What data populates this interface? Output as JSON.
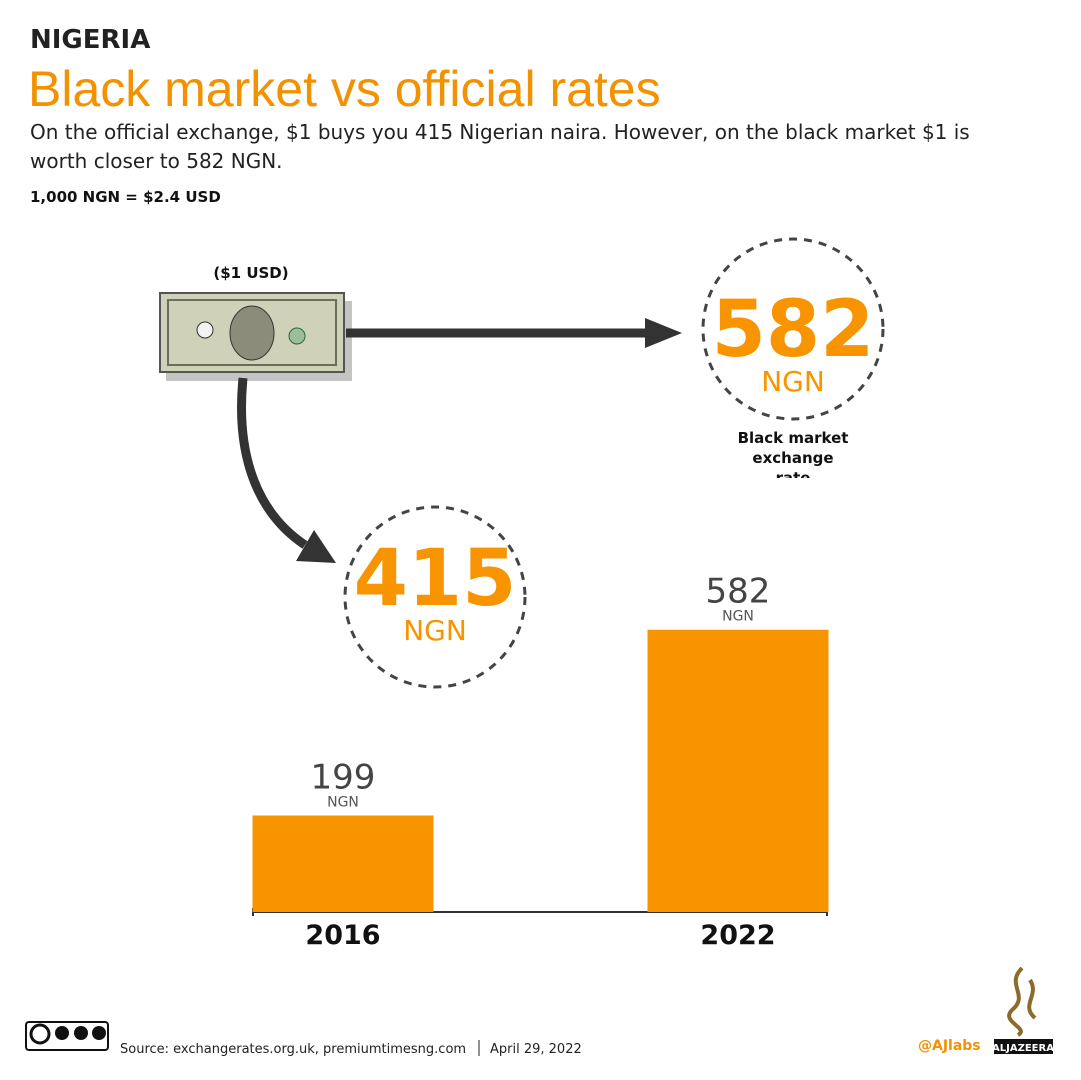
{
  "chart_data": {
    "type": "bar",
    "kicker": "NIGERIA",
    "title": "Black market vs official rates",
    "subtitle": "On the official exchange, $1 buys you 415 Nigerian naira. However, on the black market $1 is worth closer to 582 NGN.",
    "note": "1,000 NGN = $2.4 USD",
    "bill_label": "($1 USD)",
    "annotations": [
      {
        "value": 582,
        "unit": "NGN",
        "label": "Black market exchange rate"
      },
      {
        "value": 415,
        "unit": "NGN"
      }
    ],
    "categories": [
      "2016",
      "2022"
    ],
    "values": [
      199,
      582
    ],
    "unit": "NGN",
    "color": "#f79400",
    "source": "Source: exchangerates.org.uk, premiumtimesng.com",
    "date": "April 29, 2022",
    "handle": "@AJlabs",
    "brand": "ALJAZEERA"
  }
}
